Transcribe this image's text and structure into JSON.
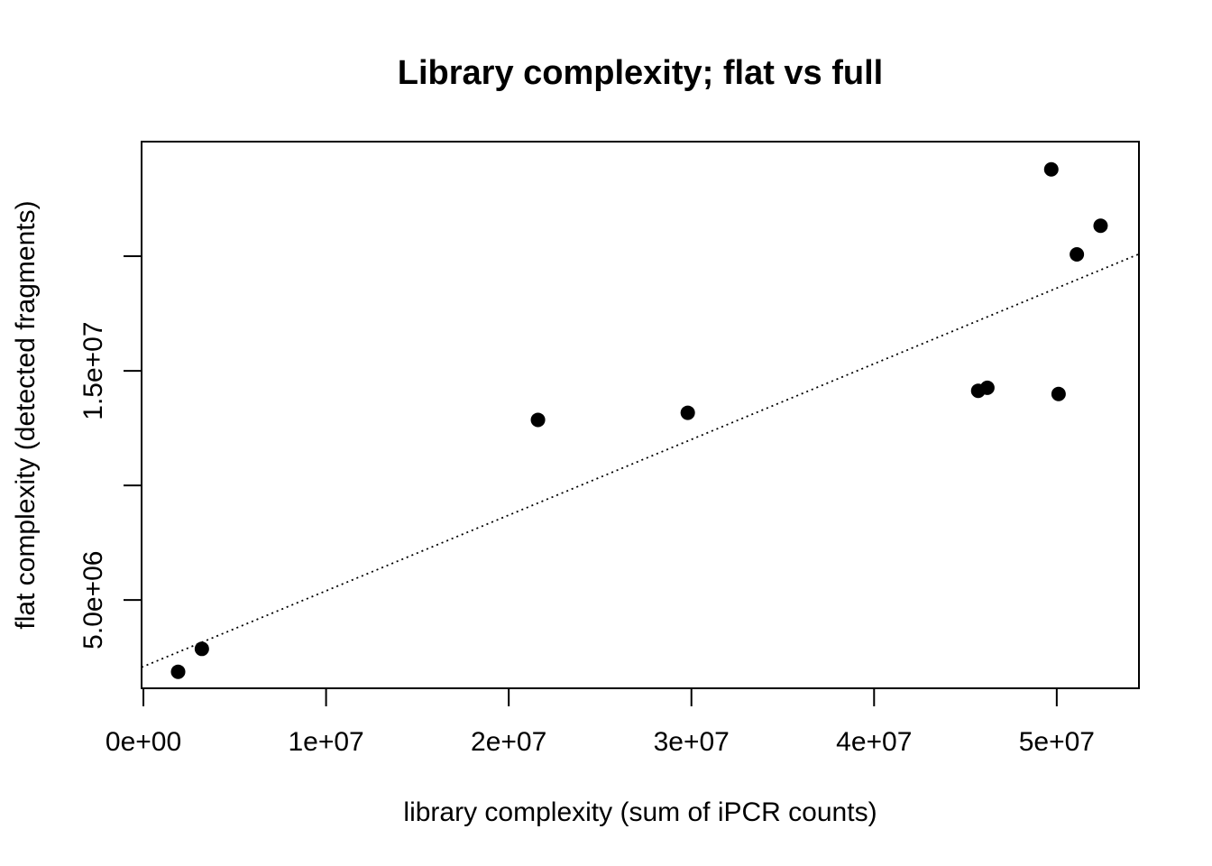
{
  "chart_data": {
    "type": "scatter",
    "title": "Library complexity; flat vs full",
    "xlabel": "library complexity (sum of iPCR counts)",
    "ylabel": "flat complexity (detected fragments)",
    "xlim": [
      -100000.0,
      54500000.0
    ],
    "ylim": [
      1150000.0,
      25000000.0
    ],
    "x_ticks": [
      0,
      10000000,
      20000000,
      30000000,
      40000000,
      50000000
    ],
    "x_tick_labels": [
      "0e+00",
      "1e+07",
      "2e+07",
      "3e+07",
      "4e+07",
      "5e+07"
    ],
    "y_ticks": [
      5000000,
      10000000,
      15000000,
      20000000
    ],
    "y_tick_labels": [
      "5.0e+06",
      "",
      "1.5e+07",
      ""
    ],
    "points": [
      {
        "x": 1900000,
        "y": 1870000
      },
      {
        "x": 3200000,
        "y": 2870000
      },
      {
        "x": 21600000,
        "y": 12860000
      },
      {
        "x": 29800000,
        "y": 13170000
      },
      {
        "x": 45700000,
        "y": 14130000
      },
      {
        "x": 46200000,
        "y": 14260000
      },
      {
        "x": 50100000,
        "y": 13990000
      },
      {
        "x": 49700000,
        "y": 23790000
      },
      {
        "x": 51100000,
        "y": 20080000
      },
      {
        "x": 52400000,
        "y": 21330000
      }
    ],
    "fit_line": {
      "intercept": 2100000,
      "slope": 0.3302,
      "style": "dotted"
    },
    "grid": false,
    "legend": "none"
  }
}
